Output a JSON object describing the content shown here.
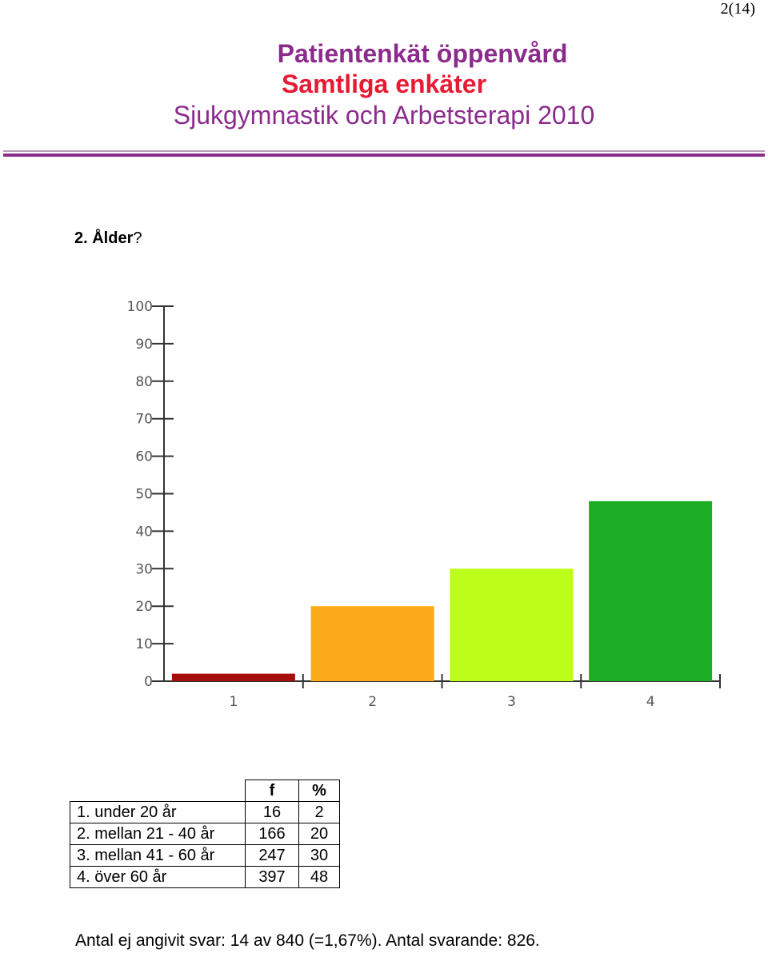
{
  "page": {
    "number": "2(14)"
  },
  "header": {
    "title": "Patientenkät öppenvård",
    "subtitle": "Samtliga enkäter",
    "scope": "Sjukgymnastik och Arbetsterapi 2010",
    "colors": {
      "title": "#8b2b8c",
      "subtitle": "#e81a33",
      "rule": "#8b2b8c"
    }
  },
  "question": {
    "number_label": "2. Ålder",
    "suffix": "?"
  },
  "chart_data": {
    "type": "bar",
    "categories": [
      "1",
      "2",
      "3",
      "4"
    ],
    "values": [
      2,
      20,
      30,
      48
    ],
    "colors": [
      "#a50d0d",
      "#fbaa19",
      "#bdfd1a",
      "#1cad24"
    ],
    "ylim": [
      0,
      100
    ],
    "yticks": [
      0,
      10,
      20,
      30,
      40,
      50,
      60,
      70,
      80,
      90,
      100
    ],
    "grid": false,
    "legend": false
  },
  "table": {
    "headers": {
      "label": "",
      "f": "f",
      "pct": "%"
    },
    "rows": [
      {
        "label": "1. under 20 år",
        "f": "16",
        "pct": "2"
      },
      {
        "label": "2. mellan 21 - 40 år",
        "f": "166",
        "pct": "20"
      },
      {
        "label": "3. mellan 41 - 60 år",
        "f": "247",
        "pct": "30"
      },
      {
        "label": "4. över 60 år",
        "f": "397",
        "pct": "48"
      }
    ]
  },
  "footer": {
    "text": "Antal ej angivit svar: 14 av 840 (=1,67%). Antal svarande:  826."
  }
}
